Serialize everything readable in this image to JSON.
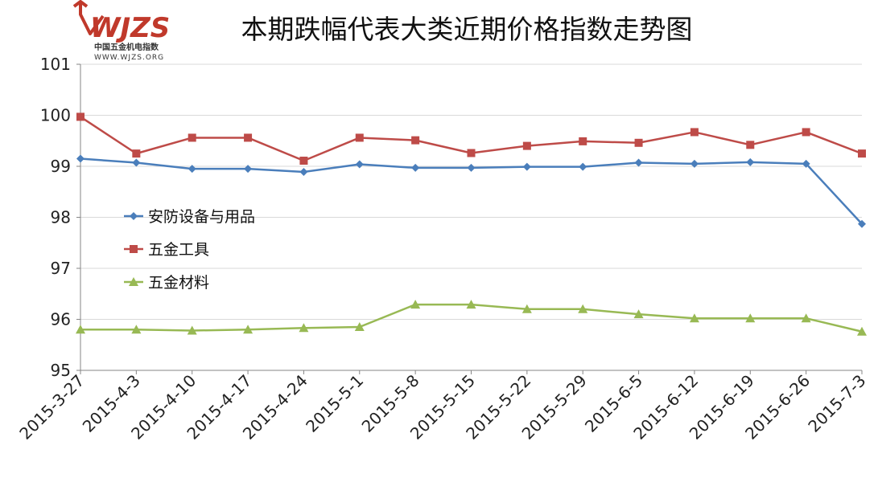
{
  "logo": {
    "mark": "WJZS",
    "name": "中国五金机电指数",
    "url": "WWW.WJZS.ORG"
  },
  "chart_data": {
    "type": "line",
    "title": "本期跌幅代表大类近期价格指数走势图",
    "xlabel": "",
    "ylabel": "",
    "ylim": [
      95,
      101
    ],
    "yticks": [
      95,
      96,
      97,
      98,
      99,
      100,
      101
    ],
    "grid": true,
    "legend_position": "left-middle",
    "categories": [
      "2015-3-27",
      "2015-4-3",
      "2015-4-10",
      "2015-4-17",
      "2015-4-24",
      "2015-5-1",
      "2015-5-8",
      "2015-5-15",
      "2015-5-22",
      "2015-5-29",
      "2015-6-5",
      "2015-6-12",
      "2015-6-19",
      "2015-6-26",
      "2015-7-3"
    ],
    "series": [
      {
        "name": "安防设备与用品",
        "color": "#4a7ebb",
        "marker": "diamond",
        "values": [
          99.15,
          99.07,
          98.95,
          98.95,
          98.89,
          99.04,
          98.97,
          98.97,
          98.99,
          98.99,
          99.07,
          99.05,
          99.08,
          99.05,
          97.87
        ]
      },
      {
        "name": "五金工具",
        "color": "#be4b48",
        "marker": "square",
        "values": [
          99.97,
          99.25,
          99.56,
          99.56,
          99.11,
          99.56,
          99.51,
          99.26,
          99.4,
          99.49,
          99.46,
          99.67,
          99.42,
          99.67,
          99.25
        ]
      },
      {
        "name": "五金材料",
        "color": "#98b954",
        "marker": "triangle",
        "values": [
          95.8,
          95.8,
          95.78,
          95.8,
          95.83,
          95.85,
          96.29,
          96.29,
          96.2,
          96.2,
          96.1,
          96.02,
          96.02,
          96.02,
          95.76
        ]
      }
    ]
  }
}
